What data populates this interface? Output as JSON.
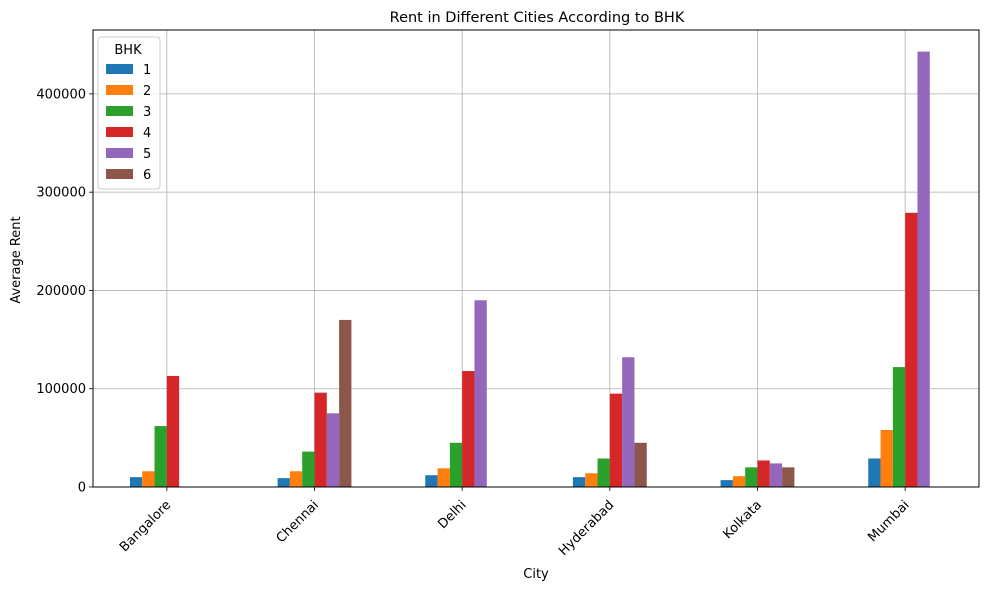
{
  "chart_data": {
    "type": "bar",
    "title": "Rent in Different Cities According to BHK",
    "xlabel": "City",
    "ylabel": "Average Rent",
    "categories": [
      "Bangalore",
      "Chennai",
      "Delhi",
      "Hyderabad",
      "Kolkata",
      "Mumbai"
    ],
    "ylim": [
      0,
      465000
    ],
    "yticks": [
      0,
      100000,
      200000,
      300000,
      400000
    ],
    "ytick_labels": [
      "0",
      "100000",
      "200000",
      "300000",
      "400000"
    ],
    "grid": true,
    "legend": {
      "title": "BHK",
      "placement": "top-left"
    },
    "series": [
      {
        "name": "1",
        "color": "#1f77b4",
        "values": [
          10000,
          9000,
          12000,
          10000,
          7000,
          29000
        ]
      },
      {
        "name": "2",
        "color": "#ff7f0e",
        "values": [
          16000,
          16000,
          19000,
          14000,
          11000,
          58000
        ]
      },
      {
        "name": "3",
        "color": "#2ca02c",
        "values": [
          62000,
          36000,
          45000,
          29000,
          20000,
          122000
        ]
      },
      {
        "name": "4",
        "color": "#d62728",
        "values": [
          113000,
          96000,
          118000,
          95000,
          27000,
          279000
        ]
      },
      {
        "name": "5",
        "color": "#9467bd",
        "values": [
          null,
          75000,
          190000,
          132000,
          24000,
          443000
        ]
      },
      {
        "name": "6",
        "color": "#8c564b",
        "values": [
          null,
          170000,
          null,
          45000,
          20000,
          null
        ]
      }
    ]
  }
}
